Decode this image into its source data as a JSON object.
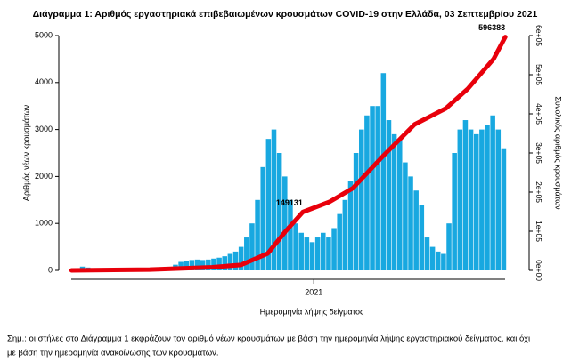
{
  "chart_data": {
    "type": "combo",
    "title": "Διάγραμμα 1: Αριθμός εργαστηριακά επιβεβαιωμένων κρουσμάτων COVID-19 στην Ελλάδα, 03 Σεπτεμβρίου 2021",
    "x_label": "Ημερομηνία λήψης δείγματος",
    "y_label": "Αριθμός νέων κρουσμάτων",
    "y2_label": "Συνολικός αριθμός κρουσμάτων",
    "xlim": [
      -14,
      581
    ],
    "xticks": [
      {
        "value": 310,
        "label": "2021"
      }
    ],
    "ylim": [
      0,
      5000
    ],
    "yticks": [
      0,
      1000,
      2000,
      3000,
      4000,
      5000
    ],
    "y2lim": [
      0,
      600000
    ],
    "y2ticks": [
      {
        "value": 0,
        "label": "0e+00"
      },
      {
        "value": 100000,
        "label": "1e+05"
      },
      {
        "value": 200000,
        "label": "2e+05"
      },
      {
        "value": 300000,
        "label": "3e+05"
      },
      {
        "value": 400000,
        "label": "4e+05"
      },
      {
        "value": 500000,
        "label": "5e+05"
      },
      {
        "value": 600000,
        "label": "6e+05"
      }
    ],
    "series": [
      {
        "type": "bar",
        "color": "#18a8e0",
        "x": [
          0,
          7,
          14,
          21,
          28,
          35,
          42,
          49,
          56,
          63,
          70,
          77,
          84,
          91,
          98,
          105,
          112,
          119,
          126,
          133,
          140,
          147,
          154,
          161,
          168,
          175,
          182,
          189,
          196,
          203,
          210,
          217,
          224,
          231,
          238,
          245,
          252,
          259,
          266,
          273,
          280,
          287,
          294,
          301,
          308,
          315,
          322,
          329,
          336,
          343,
          350,
          357,
          364,
          371,
          378,
          385,
          392,
          399,
          406,
          413,
          420,
          427,
          434,
          441,
          448,
          455,
          462,
          469,
          476,
          483,
          490,
          497,
          504,
          511,
          518,
          525,
          532,
          539,
          546,
          553
        ],
        "values": [
          10,
          40,
          80,
          60,
          30,
          20,
          15,
          10,
          10,
          15,
          10,
          15,
          20,
          30,
          30,
          25,
          40,
          40,
          60,
          120,
          180,
          200,
          220,
          230,
          220,
          230,
          250,
          270,
          300,
          350,
          400,
          500,
          700,
          1000,
          1500,
          2200,
          2800,
          3000,
          2500,
          2000,
          1500,
          1000,
          800,
          700,
          600,
          700,
          800,
          700,
          900,
          1200,
          1500,
          1900,
          2500,
          3000,
          3300,
          3500,
          3500,
          4200,
          3200,
          2900,
          2800,
          2300,
          2000,
          1700,
          1400,
          700,
          500,
          400,
          350,
          1000,
          2500,
          3000,
          3200,
          3000,
          2900,
          3000,
          3100,
          3300,
          3000,
          2600
        ]
      },
      {
        "type": "line",
        "axis": "y2",
        "color": "#e8000b",
        "x": [
          0,
          100,
          180,
          217,
          251,
          274,
          296,
          330,
          360,
          399,
          439,
          479,
          507,
          540,
          555
        ],
        "values": [
          0,
          2000,
          8000,
          14000,
          43000,
          100000,
          149131,
          175000,
          210000,
          293000,
          373000,
          414000,
          464000,
          540000,
          596383
        ]
      }
    ],
    "annotations": [
      {
        "x": 296,
        "value": 149131
      },
      {
        "x": 555,
        "value": 596383
      }
    ],
    "footnote": [
      "Σημ.: οι στήλες στο Διάγραμμα 1 εκφράζουν τον αριθμό νέων κρουσμάτων με βάση την ημερομηνία λήψης εργαστηριακού δείγματος, και όχι",
      "με βάση την ημερομηνία ανακοίνωσης των κρουσμάτων."
    ]
  }
}
